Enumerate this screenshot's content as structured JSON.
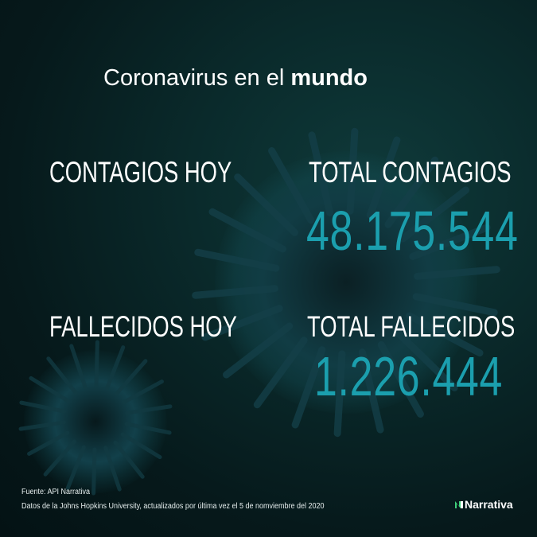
{
  "title": {
    "regular": "Coronavirus en el ",
    "bold": "mundo"
  },
  "stats": {
    "contagios_hoy_label": "CONTAGIOS HOY",
    "total_contagios_label": "TOTAL CONTAGIOS",
    "total_contagios_value": "48.175.544",
    "fallecidos_hoy_label": "FALLECIDOS HOY",
    "total_fallecidos_label": "TOTAL FALLECIDOS",
    "total_fallecidos_value": "1.226.444"
  },
  "footer": {
    "source": "Fuente: API Narrativa",
    "note": "Datos de la Johns Hopkins University, actualizados por última vez el 5 de nomviembre del 2020",
    "logo": "Narrativa"
  },
  "colors": {
    "accent": "#1b9fae",
    "background": "#0a2a2b"
  }
}
